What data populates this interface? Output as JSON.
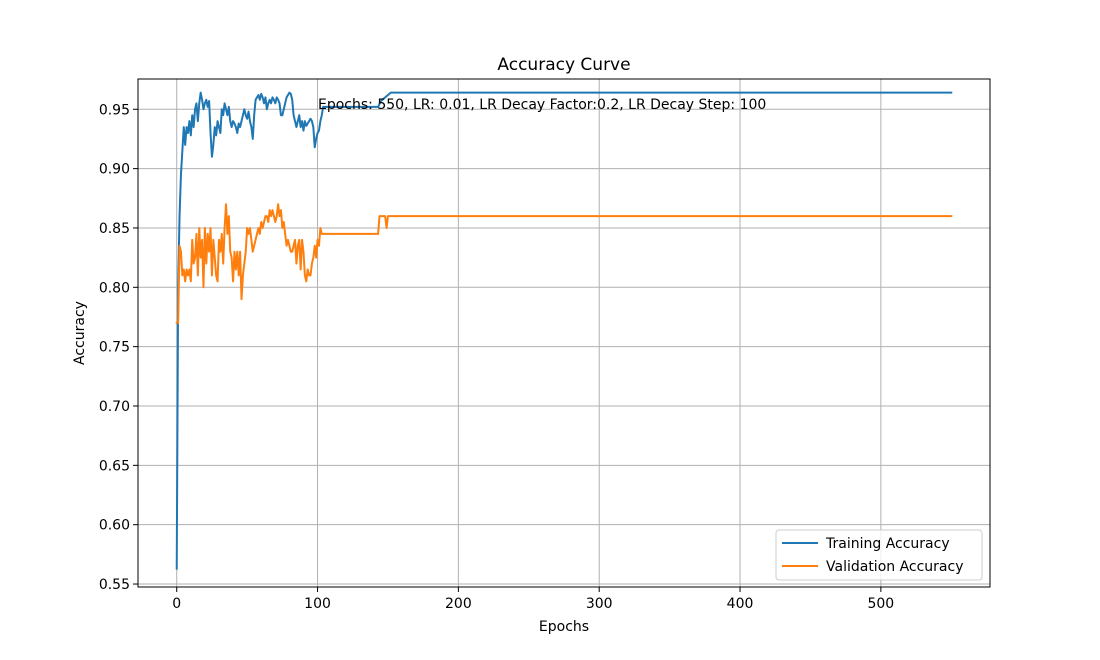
{
  "chart_data": {
    "type": "line",
    "title": "Accuracy Curve",
    "xlabel": "Epochs",
    "ylabel": "Accuracy",
    "xlim": [
      -27.5,
      577.5
    ],
    "ylim": [
      0.5475,
      0.9755
    ],
    "xticks": [
      0,
      100,
      200,
      300,
      400,
      500
    ],
    "yticks": [
      0.55,
      0.6,
      0.65,
      0.7,
      0.75,
      0.8,
      0.85,
      0.9,
      0.95
    ],
    "ytick_labels": [
      "0.55",
      "0.60",
      "0.65",
      "0.70",
      "0.75",
      "0.80",
      "0.85",
      "0.90",
      "0.95"
    ],
    "grid": true,
    "legend_position": "lower-right",
    "annotation": "Epochs: 550, LR: 0.01, LR Decay Factor:0.2, LR Decay Step: 100",
    "series": [
      {
        "name": "Training Accuracy",
        "color": "#1f77b4",
        "points": [
          [
            0,
            0.563
          ],
          [
            1,
            0.8
          ],
          [
            2,
            0.86
          ],
          [
            3,
            0.895
          ],
          [
            4,
            0.915
          ],
          [
            5,
            0.935
          ],
          [
            6,
            0.92
          ],
          [
            7,
            0.935
          ],
          [
            8,
            0.93
          ],
          [
            9,
            0.94
          ],
          [
            10,
            0.928
          ],
          [
            11,
            0.945
          ],
          [
            12,
            0.935
          ],
          [
            13,
            0.95
          ],
          [
            14,
            0.955
          ],
          [
            15,
            0.94
          ],
          [
            16,
            0.955
          ],
          [
            17,
            0.964
          ],
          [
            18,
            0.958
          ],
          [
            19,
            0.95
          ],
          [
            20,
            0.955
          ],
          [
            21,
            0.958
          ],
          [
            22,
            0.952
          ],
          [
            23,
            0.957
          ],
          [
            24,
            0.93
          ],
          [
            25,
            0.91
          ],
          [
            26,
            0.92
          ],
          [
            27,
            0.935
          ],
          [
            28,
            0.928
          ],
          [
            29,
            0.94
          ],
          [
            30,
            0.935
          ],
          [
            31,
            0.93
          ],
          [
            32,
            0.95
          ],
          [
            33,
            0.945
          ],
          [
            34,
            0.955
          ],
          [
            35,
            0.95
          ],
          [
            36,
            0.945
          ],
          [
            37,
            0.952
          ],
          [
            38,
            0.94
          ],
          [
            39,
            0.935
          ],
          [
            40,
            0.94
          ],
          [
            41,
            0.938
          ],
          [
            42,
            0.935
          ],
          [
            43,
            0.93
          ],
          [
            44,
            0.938
          ],
          [
            45,
            0.935
          ],
          [
            46,
            0.94
          ],
          [
            47,
            0.945
          ],
          [
            48,
            0.95
          ],
          [
            49,
            0.945
          ],
          [
            50,
            0.942
          ],
          [
            51,
            0.948
          ],
          [
            52,
            0.94
          ],
          [
            53,
            0.935
          ],
          [
            54,
            0.925
          ],
          [
            55,
            0.945
          ],
          [
            56,
            0.958
          ],
          [
            57,
            0.96
          ],
          [
            58,
            0.962
          ],
          [
            59,
            0.958
          ],
          [
            60,
            0.963
          ],
          [
            61,
            0.96
          ],
          [
            62,
            0.955
          ],
          [
            63,
            0.96
          ],
          [
            64,
            0.95
          ],
          [
            65,
            0.955
          ],
          [
            66,
            0.958
          ],
          [
            67,
            0.955
          ],
          [
            68,
            0.96
          ],
          [
            69,
            0.958
          ],
          [
            70,
            0.955
          ],
          [
            71,
            0.96
          ],
          [
            72,
            0.958
          ],
          [
            73,
            0.955
          ],
          [
            74,
            0.945
          ],
          [
            75,
            0.945
          ],
          [
            76,
            0.95
          ],
          [
            77,
            0.955
          ],
          [
            78,
            0.96
          ],
          [
            79,
            0.962
          ],
          [
            80,
            0.964
          ],
          [
            81,
            0.963
          ],
          [
            82,
            0.958
          ],
          [
            83,
            0.945
          ],
          [
            84,
            0.94
          ],
          [
            85,
            0.935
          ],
          [
            86,
            0.94
          ],
          [
            87,
            0.945
          ],
          [
            88,
            0.935
          ],
          [
            89,
            0.94
          ],
          [
            90,
            0.932
          ],
          [
            91,
            0.94
          ],
          [
            92,
            0.936
          ],
          [
            93,
            0.938
          ],
          [
            94,
            0.94
          ],
          [
            95,
            0.942
          ],
          [
            96,
            0.94
          ],
          [
            97,
            0.935
          ],
          [
            98,
            0.918
          ],
          [
            99,
            0.925
          ],
          [
            100,
            0.93
          ],
          [
            101,
            0.932
          ],
          [
            102,
            0.94
          ],
          [
            103,
            0.945
          ],
          [
            104,
            0.952
          ],
          [
            110,
            0.952
          ],
          [
            120,
            0.952
          ],
          [
            130,
            0.952
          ],
          [
            140,
            0.952
          ],
          [
            143,
            0.952
          ],
          [
            145,
            0.957
          ],
          [
            148,
            0.96
          ],
          [
            150,
            0.962
          ],
          [
            152,
            0.964
          ],
          [
            160,
            0.964
          ],
          [
            200,
            0.964
          ],
          [
            300,
            0.964
          ],
          [
            400,
            0.964
          ],
          [
            500,
            0.964
          ],
          [
            550,
            0.964
          ]
        ]
      },
      {
        "name": "Validation Accuracy",
        "color": "#ff7f0e",
        "points": [
          [
            0,
            0.77
          ],
          [
            1,
            0.77
          ],
          [
            2,
            0.835
          ],
          [
            3,
            0.83
          ],
          [
            4,
            0.81
          ],
          [
            5,
            0.815
          ],
          [
            6,
            0.805
          ],
          [
            7,
            0.815
          ],
          [
            8,
            0.81
          ],
          [
            9,
            0.815
          ],
          [
            10,
            0.805
          ],
          [
            11,
            0.84
          ],
          [
            12,
            0.82
          ],
          [
            13,
            0.825
          ],
          [
            14,
            0.845
          ],
          [
            15,
            0.81
          ],
          [
            16,
            0.85
          ],
          [
            17,
            0.825
          ],
          [
            18,
            0.84
          ],
          [
            19,
            0.8
          ],
          [
            20,
            0.85
          ],
          [
            21,
            0.82
          ],
          [
            22,
            0.845
          ],
          [
            23,
            0.83
          ],
          [
            24,
            0.85
          ],
          [
            25,
            0.81
          ],
          [
            26,
            0.84
          ],
          [
            27,
            0.825
          ],
          [
            28,
            0.81
          ],
          [
            29,
            0.805
          ],
          [
            30,
            0.84
          ],
          [
            31,
            0.83
          ],
          [
            32,
            0.845
          ],
          [
            33,
            0.82
          ],
          [
            34,
            0.85
          ],
          [
            35,
            0.87
          ],
          [
            36,
            0.845
          ],
          [
            37,
            0.86
          ],
          [
            38,
            0.83
          ],
          [
            39,
            0.825
          ],
          [
            40,
            0.805
          ],
          [
            41,
            0.83
          ],
          [
            42,
            0.815
          ],
          [
            43,
            0.83
          ],
          [
            44,
            0.81
          ],
          [
            45,
            0.83
          ],
          [
            46,
            0.79
          ],
          [
            47,
            0.81
          ],
          [
            48,
            0.82
          ],
          [
            49,
            0.83
          ],
          [
            50,
            0.85
          ],
          [
            51,
            0.845
          ],
          [
            52,
            0.85
          ],
          [
            53,
            0.84
          ],
          [
            54,
            0.83
          ],
          [
            55,
            0.835
          ],
          [
            56,
            0.84
          ],
          [
            57,
            0.845
          ],
          [
            58,
            0.85
          ],
          [
            59,
            0.845
          ],
          [
            60,
            0.855
          ],
          [
            61,
            0.85
          ],
          [
            62,
            0.855
          ],
          [
            63,
            0.86
          ],
          [
            64,
            0.86
          ],
          [
            65,
            0.855
          ],
          [
            66,
            0.865
          ],
          [
            67,
            0.86
          ],
          [
            68,
            0.865
          ],
          [
            69,
            0.86
          ],
          [
            70,
            0.855
          ],
          [
            71,
            0.86
          ],
          [
            72,
            0.87
          ],
          [
            73,
            0.86
          ],
          [
            74,
            0.865
          ],
          [
            75,
            0.85
          ],
          [
            76,
            0.855
          ],
          [
            77,
            0.845
          ],
          [
            78,
            0.835
          ],
          [
            79,
            0.84
          ],
          [
            80,
            0.835
          ],
          [
            81,
            0.83
          ],
          [
            82,
            0.83
          ],
          [
            83,
            0.835
          ],
          [
            84,
            0.84
          ],
          [
            85,
            0.82
          ],
          [
            86,
            0.835
          ],
          [
            87,
            0.84
          ],
          [
            88,
            0.815
          ],
          [
            89,
            0.84
          ],
          [
            90,
            0.83
          ],
          [
            91,
            0.81
          ],
          [
            92,
            0.805
          ],
          [
            93,
            0.815
          ],
          [
            94,
            0.81
          ],
          [
            95,
            0.81
          ],
          [
            96,
            0.82
          ],
          [
            97,
            0.825
          ],
          [
            98,
            0.835
          ],
          [
            99,
            0.825
          ],
          [
            100,
            0.84
          ],
          [
            101,
            0.835
          ],
          [
            102,
            0.85
          ],
          [
            103,
            0.845
          ],
          [
            104,
            0.845
          ],
          [
            110,
            0.845
          ],
          [
            120,
            0.845
          ],
          [
            130,
            0.845
          ],
          [
            140,
            0.845
          ],
          [
            143,
            0.845
          ],
          [
            144,
            0.86
          ],
          [
            148,
            0.86
          ],
          [
            149,
            0.85
          ],
          [
            150,
            0.86
          ],
          [
            155,
            0.86
          ],
          [
            200,
            0.86
          ],
          [
            300,
            0.86
          ],
          [
            400,
            0.86
          ],
          [
            500,
            0.86
          ],
          [
            550,
            0.86
          ]
        ]
      }
    ]
  }
}
